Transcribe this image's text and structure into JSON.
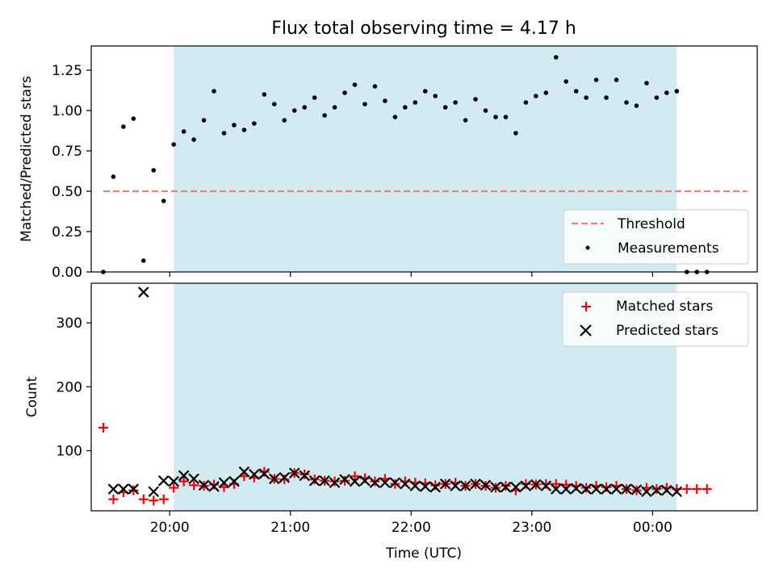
{
  "title": "Flux total observing time = 4.17 h",
  "colors": {
    "span": "#add8e6",
    "threshold": "#f08080",
    "measurements": "#000000",
    "matched": "#ff0000",
    "predicted": "#000000"
  },
  "chart_data": [
    {
      "type": "scatter",
      "ylabel": "Matched/Predicted stars",
      "ylim": [
        0,
        1.4
      ],
      "yticks": [
        "0.00",
        "0.25",
        "0.50",
        "0.75",
        "1.00",
        "1.25"
      ],
      "yticks_values": [
        0,
        0.25,
        0.5,
        0.75,
        1.0,
        1.25
      ],
      "xlim": [
        "19:21",
        "00:52"
      ],
      "shaded_span": [
        "20:02",
        "00:12"
      ],
      "legend_position": "lower-right",
      "threshold": {
        "name": "Threshold",
        "y": 0.5,
        "x": [
          "19:27",
          "00:47"
        ],
        "style": "dashed"
      },
      "series": [
        {
          "name": "Measurements",
          "marker": "dot",
          "points": [
            [
              "19:27",
              0.0
            ],
            [
              "19:32",
              0.59
            ],
            [
              "19:37",
              0.9
            ],
            [
              "19:42",
              0.95
            ],
            [
              "19:47",
              0.07
            ],
            [
              "19:52",
              0.63
            ],
            [
              "19:57",
              0.44
            ],
            [
              "20:02",
              0.79
            ],
            [
              "20:07",
              0.87
            ],
            [
              "20:12",
              0.82
            ],
            [
              "20:17",
              0.94
            ],
            [
              "20:22",
              1.12
            ],
            [
              "20:27",
              0.86
            ],
            [
              "20:32",
              0.91
            ],
            [
              "20:37",
              0.88
            ],
            [
              "20:42",
              0.92
            ],
            [
              "20:47",
              1.1
            ],
            [
              "20:52",
              1.04
            ],
            [
              "20:57",
              0.94
            ],
            [
              "21:02",
              1.0
            ],
            [
              "21:07",
              1.02
            ],
            [
              "21:12",
              1.08
            ],
            [
              "21:17",
              0.97
            ],
            [
              "21:22",
              1.02
            ],
            [
              "21:27",
              1.11
            ],
            [
              "21:32",
              1.16
            ],
            [
              "21:37",
              1.04
            ],
            [
              "21:42",
              1.15
            ],
            [
              "21:47",
              1.06
            ],
            [
              "21:52",
              0.96
            ],
            [
              "21:57",
              1.02
            ],
            [
              "22:02",
              1.05
            ],
            [
              "22:07",
              1.12
            ],
            [
              "22:12",
              1.09
            ],
            [
              "22:17",
              1.02
            ],
            [
              "22:22",
              1.05
            ],
            [
              "22:27",
              0.94
            ],
            [
              "22:32",
              1.07
            ],
            [
              "22:37",
              1.0
            ],
            [
              "22:42",
              0.96
            ],
            [
              "22:47",
              0.96
            ],
            [
              "22:52",
              0.86
            ],
            [
              "22:57",
              1.05
            ],
            [
              "23:02",
              1.09
            ],
            [
              "23:07",
              1.11
            ],
            [
              "23:12",
              1.33
            ],
            [
              "23:17",
              1.18
            ],
            [
              "23:22",
              1.12
            ],
            [
              "23:27",
              1.08
            ],
            [
              "23:32",
              1.19
            ],
            [
              "23:37",
              1.08
            ],
            [
              "23:42",
              1.19
            ],
            [
              "23:47",
              1.05
            ],
            [
              "23:52",
              1.03
            ],
            [
              "23:57",
              1.17
            ],
            [
              "00:02",
              1.08
            ],
            [
              "00:07",
              1.11
            ],
            [
              "00:12",
              1.12
            ],
            [
              "00:17",
              0.0
            ],
            [
              "00:22",
              0.0
            ],
            [
              "00:27",
              0.0
            ]
          ]
        }
      ]
    },
    {
      "type": "scatter",
      "ylabel": "Count",
      "xlabel": "Time (UTC)",
      "ylim": [
        6,
        362
      ],
      "yticks": [
        "100",
        "200",
        "300"
      ],
      "yticks_values": [
        100,
        200,
        300
      ],
      "xlim": [
        "19:21",
        "00:52"
      ],
      "xticks": [
        "20:00",
        "21:00",
        "22:00",
        "23:00",
        "00:00"
      ],
      "shaded_span": [
        "20:02",
        "00:12"
      ],
      "legend_position": "top-right",
      "series": [
        {
          "name": "Matched stars",
          "marker": "plus",
          "points": [
            [
              "19:27",
              136
            ],
            [
              "19:32",
              24
            ],
            [
              "19:37",
              35
            ],
            [
              "19:42",
              38
            ],
            [
              "19:47",
              24
            ],
            [
              "19:52",
              22
            ],
            [
              "19:57",
              24
            ],
            [
              "20:02",
              42
            ],
            [
              "20:07",
              52
            ],
            [
              "20:12",
              46
            ],
            [
              "20:17",
              45
            ],
            [
              "20:22",
              47
            ],
            [
              "20:27",
              43
            ],
            [
              "20:32",
              48
            ],
            [
              "20:37",
              60
            ],
            [
              "20:42",
              58
            ],
            [
              "20:47",
              67
            ],
            [
              "20:52",
              56
            ],
            [
              "20:57",
              55
            ],
            [
              "21:02",
              65
            ],
            [
              "21:07",
              63
            ],
            [
              "21:12",
              55
            ],
            [
              "21:17",
              53
            ],
            [
              "21:22",
              52
            ],
            [
              "21:27",
              53
            ],
            [
              "21:32",
              60
            ],
            [
              "21:37",
              57
            ],
            [
              "21:42",
              52
            ],
            [
              "21:47",
              56
            ],
            [
              "21:52",
              48
            ],
            [
              "21:57",
              52
            ],
            [
              "22:02",
              50
            ],
            [
              "22:07",
              49
            ],
            [
              "22:12",
              46
            ],
            [
              "22:17",
              48
            ],
            [
              "22:22",
              50
            ],
            [
              "22:27",
              45
            ],
            [
              "22:32",
              48
            ],
            [
              "22:37",
              45
            ],
            [
              "22:42",
              42
            ],
            [
              "22:47",
              45
            ],
            [
              "22:52",
              38
            ],
            [
              "22:57",
              48
            ],
            [
              "23:02",
              47
            ],
            [
              "23:07",
              48
            ],
            [
              "23:12",
              48
            ],
            [
              "23:17",
              47
            ],
            [
              "23:22",
              45
            ],
            [
              "23:27",
              42
            ],
            [
              "23:32",
              45
            ],
            [
              "23:37",
              43
            ],
            [
              "23:42",
              45
            ],
            [
              "23:47",
              40
            ],
            [
              "23:52",
              38
            ],
            [
              "23:57",
              42
            ],
            [
              "00:02",
              40
            ],
            [
              "00:07",
              42
            ],
            [
              "00:12",
              40
            ],
            [
              "00:17",
              40
            ],
            [
              "00:22",
              40
            ],
            [
              "00:27",
              40
            ]
          ]
        },
        {
          "name": "Predicted stars",
          "marker": "x",
          "points": [
            [
              "19:32",
              40
            ],
            [
              "19:37",
              40
            ],
            [
              "19:42",
              40
            ],
            [
              "19:47",
              348
            ],
            [
              "19:52",
              36
            ],
            [
              "19:57",
              53
            ],
            [
              "20:02",
              52
            ],
            [
              "20:07",
              61
            ],
            [
              "20:12",
              56
            ],
            [
              "20:17",
              46
            ],
            [
              "20:22",
              44
            ],
            [
              "20:27",
              50
            ],
            [
              "20:32",
              52
            ],
            [
              "20:37",
              67
            ],
            [
              "20:42",
              63
            ],
            [
              "20:47",
              64
            ],
            [
              "20:52",
              56
            ],
            [
              "20:57",
              58
            ],
            [
              "21:02",
              65
            ],
            [
              "21:07",
              61
            ],
            [
              "21:12",
              53
            ],
            [
              "21:17",
              53
            ],
            [
              "21:22",
              50
            ],
            [
              "21:27",
              55
            ],
            [
              "21:32",
              52
            ],
            [
              "21:37",
              53
            ],
            [
              "21:42",
              50
            ],
            [
              "21:47",
              50
            ],
            [
              "21:52",
              50
            ],
            [
              "21:57",
              48
            ],
            [
              "22:02",
              45
            ],
            [
              "22:07",
              44
            ],
            [
              "22:12",
              43
            ],
            [
              "22:17",
              48
            ],
            [
              "22:22",
              45
            ],
            [
              "22:27",
              45
            ],
            [
              "22:32",
              48
            ],
            [
              "22:37",
              46
            ],
            [
              "22:42",
              43
            ],
            [
              "22:47",
              43
            ],
            [
              "22:52",
              43
            ],
            [
              "22:57",
              45
            ],
            [
              "23:02",
              47
            ],
            [
              "23:07",
              45
            ],
            [
              "23:12",
              40
            ],
            [
              "23:17",
              40
            ],
            [
              "23:22",
              41
            ],
            [
              "23:27",
              40
            ],
            [
              "23:32",
              40
            ],
            [
              "23:37",
              40
            ],
            [
              "23:42",
              40
            ],
            [
              "23:47",
              40
            ],
            [
              "23:52",
              39
            ],
            [
              "23:57",
              36
            ],
            [
              "00:02",
              38
            ],
            [
              "00:07",
              38
            ],
            [
              "00:12",
              36
            ]
          ]
        }
      ]
    }
  ]
}
